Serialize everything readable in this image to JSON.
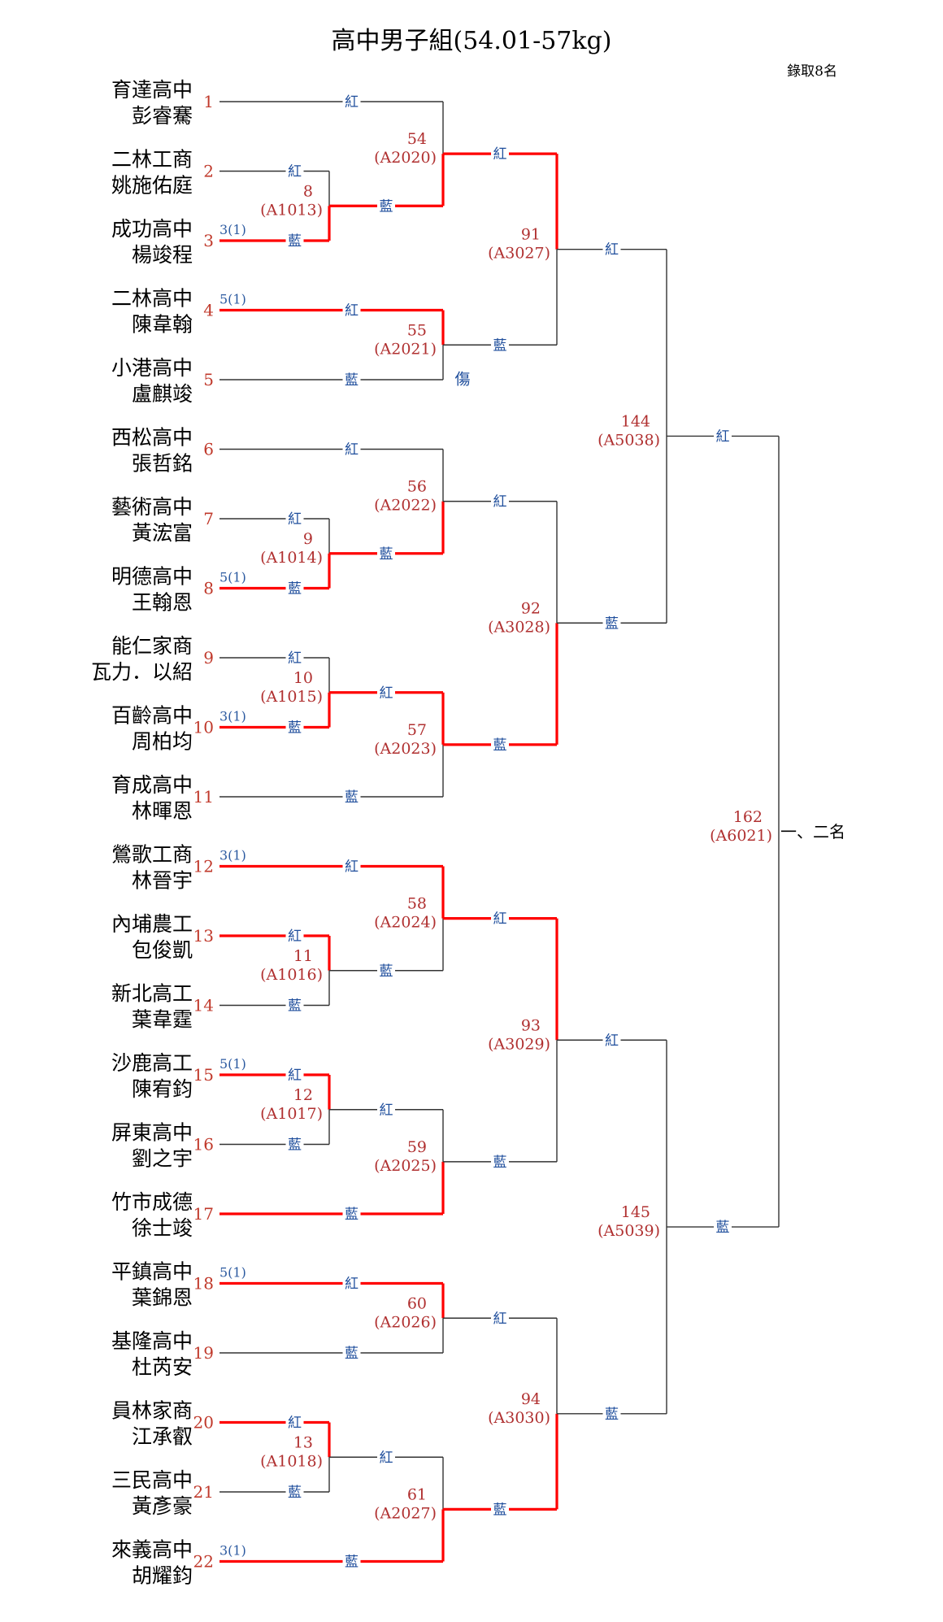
{
  "title": "高中男子組(54.01-57kg)",
  "admit_note": "錄取8名",
  "final_label": "一、二名",
  "colors": {
    "win_line": "#ff0000",
    "line": "#333333",
    "label_blue": "#1f4e9c",
    "label_red": "#b03030"
  },
  "entries": [
    {
      "seed": "1",
      "school": "育達高中",
      "name": "彭睿騫"
    },
    {
      "seed": "2",
      "school": "二林工商",
      "name": "姚施佑庭"
    },
    {
      "seed": "3",
      "school": "成功高中",
      "name": "楊竣程",
      "prior": "3(1)"
    },
    {
      "seed": "4",
      "school": "二林高中",
      "name": "陳韋翰",
      "prior": "5(1)"
    },
    {
      "seed": "5",
      "school": "小港高中",
      "name": "盧麒竣"
    },
    {
      "seed": "6",
      "school": "西松高中",
      "name": "張哲銘"
    },
    {
      "seed": "7",
      "school": "藝術高中",
      "name": "黃浤富"
    },
    {
      "seed": "8",
      "school": "明德高中",
      "name": "王翰恩",
      "prior": "5(1)"
    },
    {
      "seed": "9",
      "school": "能仁家商",
      "name": "瓦力．以紹"
    },
    {
      "seed": "10",
      "school": "百齡高中",
      "name": "周柏均",
      "prior": "3(1)"
    },
    {
      "seed": "11",
      "school": "育成高中",
      "name": "林暉恩"
    },
    {
      "seed": "12",
      "school": "鶯歌工商",
      "name": "林晉宇",
      "prior": "3(1)"
    },
    {
      "seed": "13",
      "school": "內埔農工",
      "name": "包俊凱"
    },
    {
      "seed": "14",
      "school": "新北高工",
      "name": "葉韋霆"
    },
    {
      "seed": "15",
      "school": "沙鹿高工",
      "name": "陳宥鈞",
      "prior": "5(1)"
    },
    {
      "seed": "16",
      "school": "屏東高中",
      "name": "劉之宇"
    },
    {
      "seed": "17",
      "school": "竹市成德",
      "name": "徐士竣"
    },
    {
      "seed": "18",
      "school": "平鎮高中",
      "name": "葉錦恩",
      "prior": "5(1)"
    },
    {
      "seed": "19",
      "school": "基隆高中",
      "name": "杜芮安"
    },
    {
      "seed": "20",
      "school": "員林家商",
      "name": "江承叡"
    },
    {
      "seed": "21",
      "school": "三民高中",
      "name": "黃彥豪"
    },
    {
      "seed": "22",
      "school": "來義高中",
      "name": "胡耀鈞",
      "prior": "3(1)"
    }
  ],
  "matches": [
    {
      "num": "8",
      "code": "(A1013)",
      "top": "紅",
      "bottom": "藍"
    },
    {
      "num": "9",
      "code": "(A1014)",
      "top": "紅",
      "bottom": "藍"
    },
    {
      "num": "10",
      "code": "(A1015)",
      "top": "紅",
      "bottom": "藍"
    },
    {
      "num": "11",
      "code": "(A1016)",
      "top": "紅",
      "bottom": "藍"
    },
    {
      "num": "12",
      "code": "(A1017)",
      "top": "紅",
      "bottom": "藍"
    },
    {
      "num": "13",
      "code": "(A1018)",
      "top": "紅",
      "bottom": "藍"
    },
    {
      "num": "54",
      "code": "(A2020)",
      "top": "紅",
      "bottom": "藍"
    },
    {
      "num": "55",
      "code": "(A2021)",
      "top": "紅",
      "bottom": "藍",
      "note": "傷"
    },
    {
      "num": "56",
      "code": "(A2022)",
      "top": "紅",
      "bottom": "藍"
    },
    {
      "num": "57",
      "code": "(A2023)",
      "top": "紅",
      "bottom": "藍"
    },
    {
      "num": "58",
      "code": "(A2024)",
      "top": "紅",
      "bottom": "藍"
    },
    {
      "num": "59",
      "code": "(A2025)",
      "top": "紅",
      "bottom": "藍"
    },
    {
      "num": "60",
      "code": "(A2026)",
      "top": "紅",
      "bottom": "藍"
    },
    {
      "num": "61",
      "code": "(A2027)",
      "top": "紅",
      "bottom": "藍"
    },
    {
      "num": "91",
      "code": "(A3027)",
      "top": "紅",
      "bottom": "藍"
    },
    {
      "num": "92",
      "code": "(A3028)",
      "top": "紅",
      "bottom": "藍"
    },
    {
      "num": "93",
      "code": "(A3029)",
      "top": "紅",
      "bottom": "藍"
    },
    {
      "num": "94",
      "code": "(A3030)",
      "top": "紅",
      "bottom": "藍"
    },
    {
      "num": "144",
      "code": "(A5038)",
      "top": "紅",
      "bottom": "藍"
    },
    {
      "num": "145",
      "code": "(A5039)",
      "top": "紅",
      "bottom": "藍"
    },
    {
      "num": "162",
      "code": "(A6021)",
      "top": "紅",
      "bottom": "藍"
    }
  ]
}
